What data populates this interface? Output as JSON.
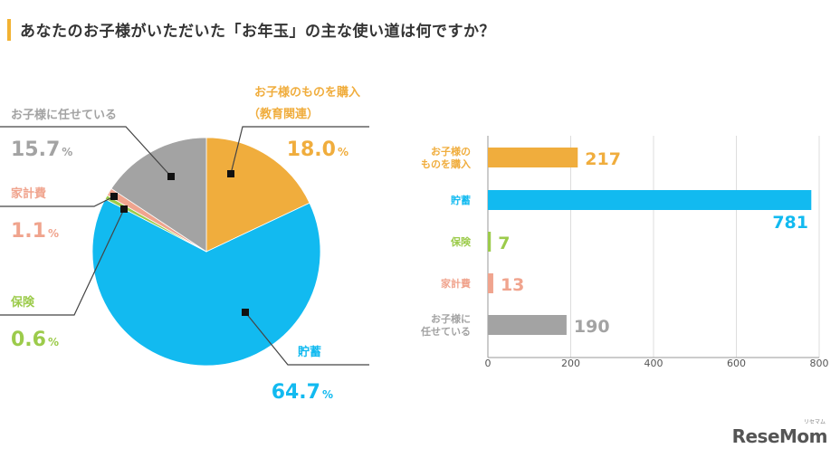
{
  "title": "あなたのお子様がいただいた「お年玉」の主な使い道は何ですか？",
  "logo": "ReseMom",
  "logo_ruby": "リセマム",
  "colors": {
    "orange": "#f0ad3d",
    "blue": "#12baf0",
    "green": "#9ccb4b",
    "salmon": "#f0a48e",
    "gray": "#a3a3a3",
    "axis": "#999999",
    "grid": "#dddddd"
  },
  "chart_data": [
    {
      "type": "pie",
      "slices": [
        {
          "label": "お子様のものを購入",
          "sublabel": "（教育関連）",
          "value": 18.0,
          "display": "18.0",
          "color": "#f0ad3d"
        },
        {
          "label": "貯蓄",
          "sublabel": "",
          "value": 64.7,
          "display": "64.7",
          "color": "#12baf0"
        },
        {
          "label": "保険",
          "sublabel": "",
          "value": 0.6,
          "display": "0.6",
          "color": "#9ccb4b"
        },
        {
          "label": "家計費",
          "sublabel": "",
          "value": 1.1,
          "display": "1.1",
          "color": "#f0a48e"
        },
        {
          "label": "お子様に任せている",
          "sublabel": "",
          "value": 15.7,
          "display": "15.7",
          "color": "#a3a3a3"
        }
      ],
      "unit": "%"
    },
    {
      "type": "bar",
      "orientation": "horizontal",
      "categories": [
        "お子様のものを購入",
        "貯蓄",
        "保険",
        "家計費",
        "お子様に任せている"
      ],
      "category_lines": [
        [
          "お子様の",
          "ものを購入"
        ],
        [
          "貯蓄"
        ],
        [
          "保険"
        ],
        [
          "家計費"
        ],
        [
          "お子様に",
          "任せている"
        ]
      ],
      "values": [
        217,
        781,
        7,
        13,
        190
      ],
      "colors": [
        "#f0ad3d",
        "#12baf0",
        "#9ccb4b",
        "#f0a48e",
        "#a3a3a3"
      ],
      "xlim": [
        0,
        800
      ],
      "xticks": [
        0,
        200,
        400,
        600,
        800
      ],
      "grid": true
    }
  ]
}
